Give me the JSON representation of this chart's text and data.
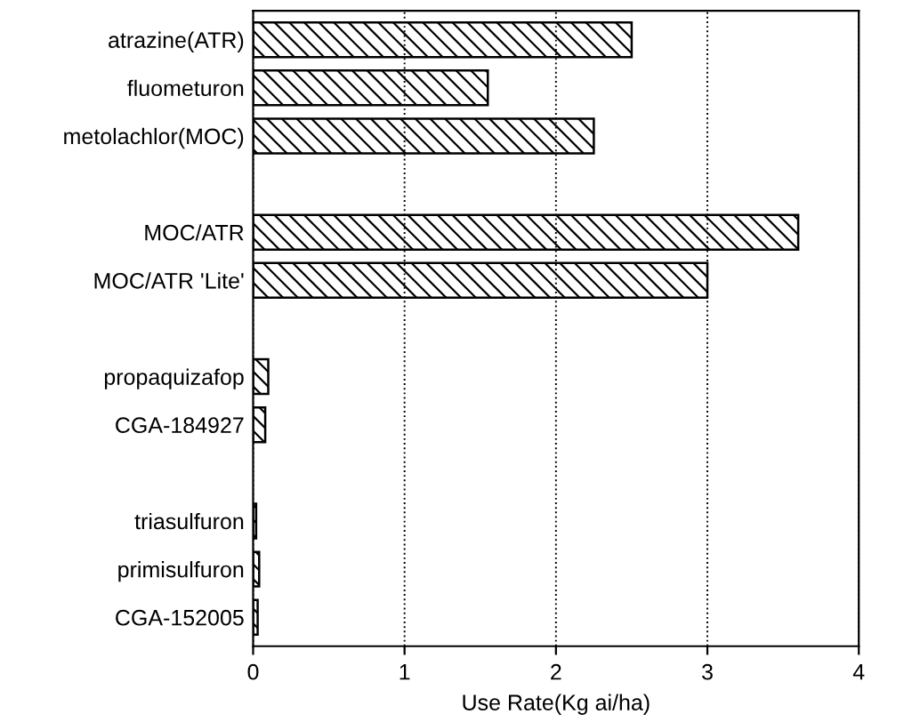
{
  "chart_data": {
    "type": "bar",
    "orientation": "horizontal",
    "xlabel": "Use Rate(Kg ai/ha)",
    "categories": [
      "atrazine(ATR)",
      "fluometuron",
      "metolachlor(MOC)",
      null,
      "MOC/ATR",
      "MOC/ATR 'Lite'",
      null,
      "propaquizafop",
      "CGA-184927",
      null,
      "triasulfuron",
      "primisulfuron",
      "CGA-152005"
    ],
    "values": [
      2.5,
      1.55,
      2.25,
      null,
      3.6,
      3.0,
      null,
      0.1,
      0.08,
      null,
      0.02,
      0.04,
      0.03
    ],
    "color": "#000000",
    "xlim": [
      0,
      4
    ],
    "xticks": [
      0,
      1,
      2,
      3,
      4
    ],
    "grid": "x",
    "legend": false
  }
}
